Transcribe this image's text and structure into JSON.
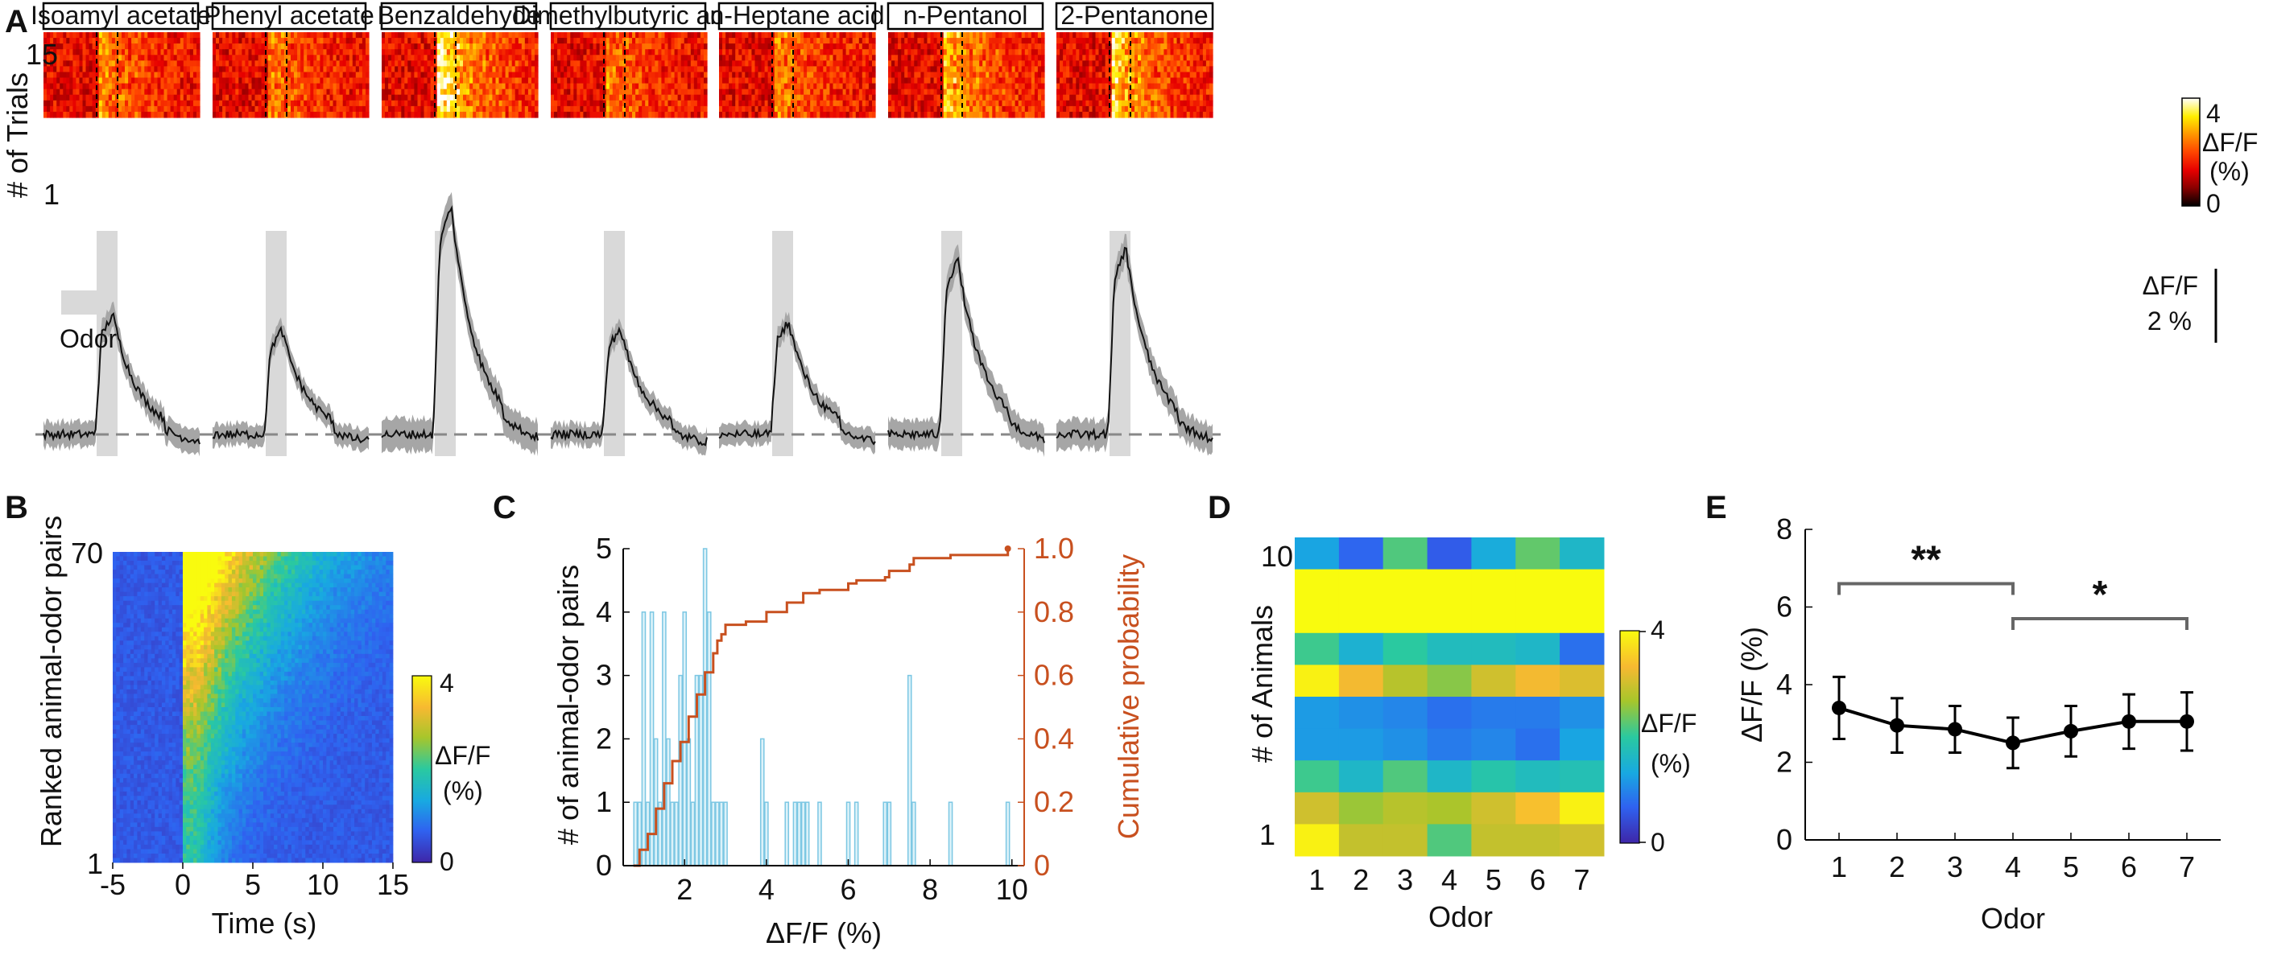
{
  "colors": {
    "hot_colormap": [
      "#000000",
      "#8b0000",
      "#e60000",
      "#ff4500",
      "#ff9900",
      "#ffee00",
      "#ffffff"
    ],
    "parula_colormap": [
      "#3e26a8",
      "#2f62f0",
      "#18a9e1",
      "#2ac9a0",
      "#a7c62b",
      "#f7b931",
      "#f9fb0e"
    ],
    "trace_line": "#111111",
    "trace_sem": "#a6a6a6",
    "odor_bar": "#d9d9d9",
    "hist_bar_face": "#dcf2f9",
    "hist_bar_edge": "#7cc7e3",
    "cumulative": "#c8501f"
  },
  "panel_labels": {
    "a": "A",
    "b": "B",
    "c": "C",
    "d": "D",
    "e": "E"
  },
  "panel_a": {
    "odors": [
      "Isoamyl acetate",
      "Phenyl acetate",
      "Benzaldehyde",
      "Dimethylbutyric acid",
      "n-Heptane acid",
      "n-Pentanol",
      "2-Pentanone"
    ],
    "heatmap_ylabel": "# of Trials",
    "heatmap_ytick_top": "15",
    "heatmap_ytick_bottom": "1",
    "n_trials": 15,
    "colorbar_max": "4",
    "colorbar_min": "0",
    "colorbar_label_line1": "ΔF/F",
    "colorbar_label_line2": "(%)",
    "odor_legend": "Odor",
    "scale_label_line1": "ΔF/F",
    "scale_label_line2": "2 %",
    "scale_value_percent": 2,
    "trace_peaks_percent": [
      3.4,
      2.95,
      6.5,
      3.0,
      3.2,
      5.0,
      5.3
    ],
    "trace_sem_percent": [
      0.35,
      0.3,
      0.45,
      0.3,
      0.3,
      0.4,
      0.4
    ]
  },
  "panel_b": {
    "ylabel": "Ranked animal-odor pairs",
    "xlabel": "Time (s)",
    "ytick_top": "70",
    "ytick_bottom": "1",
    "xtick_labels": [
      "-5",
      "0",
      "5",
      "10",
      "15"
    ],
    "colorbar_max": "4",
    "colorbar_min": "0",
    "colorbar_label_line1": "ΔF/F",
    "colorbar_label_line2": "(%)"
  },
  "panel_d": {
    "ylabel": "# of Animals",
    "xlabel": "Odor",
    "ytick_top": "10",
    "ytick_bottom": "1",
    "xtick_labels": [
      "1",
      "2",
      "3",
      "4",
      "5",
      "6",
      "7"
    ],
    "colorbar_ticks": [
      "4",
      "0"
    ],
    "colorbar_label_line1": "ΔF/F",
    "colorbar_label_line2": "(%)"
  },
  "chart_data": [
    {
      "panel": "C",
      "type": "bar",
      "description": "histogram of peak ΔF/F with cumulative probability",
      "xlabel": "ΔF/F (%)",
      "ylabel": "# of animal-odor pairs",
      "y2label": "Cumulative probability",
      "xlim": [
        0.5,
        10.3
      ],
      "ylim": [
        0,
        5
      ],
      "y2lim": [
        0,
        1.0
      ],
      "xticks": [
        "2",
        "4",
        "6",
        "8",
        "10"
      ],
      "yticks": [
        "0",
        "1",
        "2",
        "3",
        "4",
        "5"
      ],
      "y2ticks": [
        "0",
        "0.2",
        "0.4",
        "0.6",
        "0.8",
        "1.0"
      ],
      "bin_centers": [
        0.8,
        0.9,
        1.0,
        1.1,
        1.2,
        1.3,
        1.4,
        1.5,
        1.6,
        1.7,
        1.8,
        1.9,
        2.0,
        2.1,
        2.2,
        2.3,
        2.4,
        2.5,
        2.6,
        2.7,
        2.8,
        2.9,
        3.0,
        3.9,
        4.0,
        4.5,
        4.7,
        4.8,
        4.9,
        5.0,
        5.3,
        6.0,
        6.2,
        6.9,
        7.0,
        7.5,
        7.6,
        8.5,
        9.9
      ],
      "counts": [
        1,
        1,
        4,
        1,
        4,
        2,
        1,
        4,
        2,
        1,
        1,
        3,
        4,
        2,
        1,
        3,
        3,
        5,
        4,
        1,
        1,
        1,
        1,
        2,
        1,
        1,
        1,
        1,
        1,
        1,
        1,
        1,
        1,
        1,
        1,
        3,
        1,
        1,
        1
      ],
      "cumulative_x": [
        0.75,
        0.9,
        1.1,
        1.3,
        1.5,
        1.7,
        1.9,
        2.1,
        2.3,
        2.5,
        2.7,
        2.8,
        2.9,
        3.0,
        3.5,
        3.9,
        4.0,
        4.5,
        4.9,
        5.3,
        6.0,
        6.2,
        6.9,
        7.0,
        7.5,
        7.6,
        8.5,
        9.9
      ],
      "cumulative_y": [
        0.0,
        0.05,
        0.1,
        0.18,
        0.26,
        0.33,
        0.39,
        0.47,
        0.54,
        0.61,
        0.67,
        0.71,
        0.73,
        0.76,
        0.77,
        0.77,
        0.8,
        0.83,
        0.86,
        0.87,
        0.89,
        0.9,
        0.91,
        0.93,
        0.95,
        0.97,
        0.98,
        1.0
      ]
    },
    {
      "panel": "D",
      "type": "heatmap",
      "description": "mean ΔF/F per animal (rows, 10 at top) and odor (columns)",
      "rows_top_to_bottom": [
        [
          1.3,
          0.7,
          2.2,
          0.6,
          1.4,
          2.3,
          1.6
        ],
        [
          4.0,
          4.0,
          4.0,
          4.0,
          4.0,
          4.0,
          4.0
        ],
        [
          4.0,
          4.0,
          4.0,
          4.0,
          4.0,
          4.0,
          4.0
        ],
        [
          2.1,
          1.5,
          2.0,
          1.7,
          1.7,
          1.6,
          0.8
        ],
        [
          3.9,
          3.3,
          2.8,
          2.5,
          3.0,
          3.3,
          3.1
        ],
        [
          1.2,
          1.1,
          1.0,
          0.8,
          0.9,
          0.9,
          1.1
        ],
        [
          1.2,
          1.2,
          1.1,
          0.9,
          1.0,
          0.8,
          1.3
        ],
        [
          2.1,
          1.6,
          2.2,
          1.6,
          1.9,
          1.7,
          1.8
        ],
        [
          3.0,
          2.6,
          2.8,
          2.7,
          3.0,
          3.4,
          3.9
        ],
        [
          3.9,
          2.9,
          2.9,
          2.2,
          2.9,
          2.9,
          3.0
        ]
      ],
      "zlim": [
        0,
        4
      ]
    },
    {
      "panel": "E",
      "type": "line",
      "description": "mean ΔF/F per odor with error bars",
      "x": [
        1,
        2,
        3,
        4,
        5,
        6,
        7
      ],
      "y": [
        3.4,
        2.95,
        2.85,
        2.5,
        2.8,
        3.05,
        3.05
      ],
      "err": [
        0.8,
        0.7,
        0.6,
        0.65,
        0.65,
        0.7,
        0.75
      ],
      "xlabel": "Odor",
      "ylabel": "ΔF/F (%)",
      "ylim": [
        0,
        8
      ],
      "yticks": [
        "0",
        "2",
        "4",
        "6",
        "8"
      ],
      "xticks": [
        "1",
        "2",
        "3",
        "4",
        "5",
        "6",
        "7"
      ],
      "annotations": [
        {
          "text": "**",
          "from_odor": 1,
          "to_odor": 4,
          "level": 6.6
        },
        {
          "text": "*",
          "from_odor": 4,
          "to_odor": 7,
          "level": 5.7
        }
      ]
    }
  ]
}
